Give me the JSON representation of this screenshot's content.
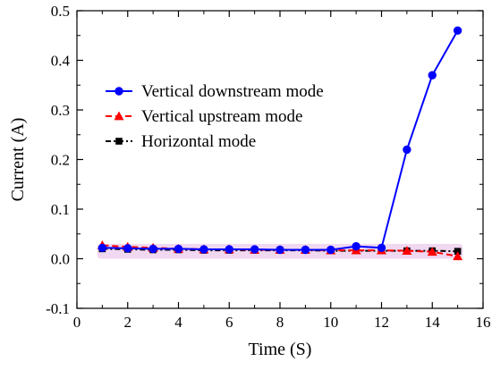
{
  "chart_data": {
    "type": "line",
    "title": "",
    "xlabel": "Time (S)",
    "ylabel": "Current (A)",
    "xlim": [
      0,
      16
    ],
    "ylim": [
      -0.1,
      0.5
    ],
    "x_ticks": [
      0,
      2,
      4,
      6,
      8,
      10,
      12,
      14,
      16
    ],
    "x_tick_labels": [
      "0",
      "2",
      "4",
      "6",
      "8",
      "10",
      "12",
      "14",
      "16"
    ],
    "y_ticks": [
      -0.1,
      0.0,
      0.1,
      0.2,
      0.3,
      0.4,
      0.5
    ],
    "y_tick_labels": [
      "-0.1",
      "0.0",
      "0.1",
      "0.2",
      "0.3",
      "0.4",
      "0.5"
    ],
    "grid": false,
    "legend_position": "upper-left",
    "x": [
      1,
      2,
      3,
      4,
      5,
      6,
      7,
      8,
      9,
      10,
      11,
      12,
      13,
      14,
      15
    ],
    "series": [
      {
        "name": "Vertical downstream mode",
        "color": "#0000ff",
        "marker": "circle",
        "line_style": "solid",
        "values": [
          0.022,
          0.021,
          0.02,
          0.02,
          0.019,
          0.019,
          0.019,
          0.018,
          0.018,
          0.018,
          0.025,
          0.022,
          0.22,
          0.37,
          0.46
        ]
      },
      {
        "name": "Vertical upstream mode",
        "color": "#ff0000",
        "marker": "triangle",
        "line_style": "dashed",
        "values": [
          0.027,
          0.024,
          0.022,
          0.02,
          0.019,
          0.019,
          0.018,
          0.018,
          0.018,
          0.017,
          0.017,
          0.017,
          0.016,
          0.014,
          0.005
        ]
      },
      {
        "name": "Horizontal mode",
        "color": "#000000",
        "marker": "square",
        "line_style": "dash-dot",
        "values": [
          0.02,
          0.019,
          0.018,
          0.018,
          0.017,
          0.017,
          0.017,
          0.017,
          0.017,
          0.016,
          0.016,
          0.016,
          0.016,
          0.016,
          0.015
        ]
      }
    ]
  }
}
